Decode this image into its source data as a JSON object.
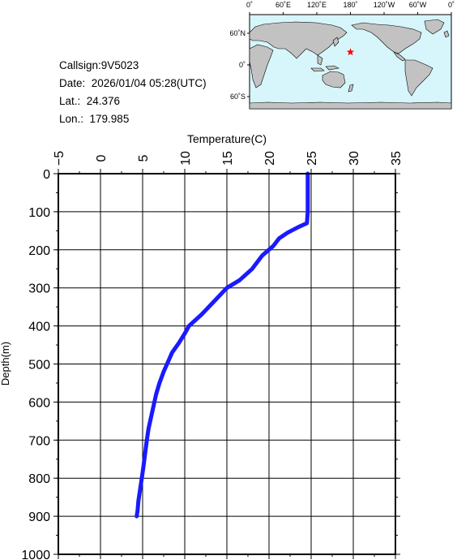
{
  "station": {
    "callsign_line": "Callsign:9V5023",
    "date_line": "Date:  2026/01/04 05:28(UTC)",
    "lat_line": "Lat.:  24.376",
    "lon_line": "Lon.:  179.985"
  },
  "map": {
    "top_ticks": [
      "0˚",
      "60˚E",
      "120˚E",
      "180˚",
      "120˚W",
      "60˚W",
      "0˚"
    ],
    "lat_ticks": [
      "60˚N",
      "0˚",
      "60˚S"
    ],
    "station_lat": 24.376,
    "station_lon": 179.985,
    "ocean_color": "#d6f6fb",
    "land_color": "#c2c2c2",
    "marker_color": "#ff0000"
  },
  "chart_data": {
    "type": "line",
    "xlabel": "Temperature(C)",
    "ylabel": "Depth(m)",
    "xlim": [
      -5,
      35
    ],
    "ylim": [
      1000,
      0
    ],
    "x_axis_position": "top",
    "x_ticks": [
      "-5",
      "0",
      "5",
      "10",
      "15",
      "20",
      "25",
      "30",
      "35"
    ],
    "y_ticks": [
      "0",
      "100",
      "200",
      "300",
      "400",
      "500",
      "600",
      "700",
      "800",
      "900",
      "1000"
    ],
    "grid": true,
    "line_color": "#1a1aff",
    "series": [
      {
        "x": [
          24.6,
          24.6,
          24.6,
          24.5,
          23.5,
          22.2,
          21.2,
          20.5,
          19.2,
          18.0,
          16.5,
          15.0,
          13.5,
          12.0,
          10.5,
          10.0,
          9.3,
          8.5,
          8.0,
          7.5,
          7.0,
          6.6,
          6.3,
          6.0,
          5.7,
          5.5,
          5.3,
          5.1,
          4.9,
          4.7,
          4.5,
          4.4,
          4.3
        ],
        "y": [
          0,
          50,
          100,
          130,
          140,
          155,
          170,
          190,
          215,
          250,
          280,
          300,
          335,
          370,
          400,
          420,
          445,
          470,
          495,
          520,
          550,
          580,
          610,
          640,
          670,
          700,
          735,
          770,
          800,
          830,
          860,
          885,
          900
        ]
      }
    ]
  }
}
